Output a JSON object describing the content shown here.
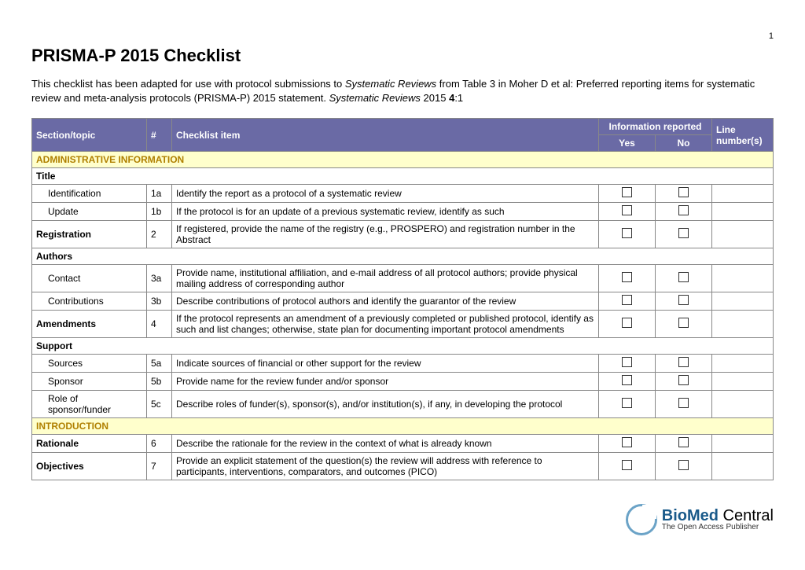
{
  "page_num": "1",
  "title": "PRISMA-P 2015 Checklist",
  "intro_pre": "This checklist has been adapted for use with protocol submissions to ",
  "intro_em1": "Systematic Reviews",
  "intro_mid": " from Table 3 in Moher D et al: Preferred reporting items for systematic review and meta-analysis protocols (PRISMA-P) 2015 statement. ",
  "intro_em2": "Systematic Reviews",
  "intro_post": " 2015 ",
  "intro_vol": "4",
  "intro_colon": ":1",
  "head": {
    "section": "Section/topic",
    "num": "#",
    "item": "Checklist item",
    "info": "Information reported",
    "yes": "Yes",
    "no": "No",
    "line": "Line number(s)"
  },
  "cat1": "ADMINISTRATIVE INFORMATION",
  "r_title": "Title",
  "r1": {
    "s": "Identification",
    "n": "1a",
    "i": "Identify the report as a protocol of a systematic review"
  },
  "r2": {
    "s": "Update",
    "n": "1b",
    "i": "If the protocol is for an update of a previous systematic review, identify as such"
  },
  "r3": {
    "s": "Registration",
    "n": "2",
    "i": "If registered, provide the name of the registry (e.g., PROSPERO) and registration number in the Abstract"
  },
  "r_auth": "Authors",
  "r4": {
    "s": "Contact",
    "n": "3a",
    "i": "Provide name, institutional affiliation, and e-mail address of all protocol authors; provide physical mailing address of corresponding author"
  },
  "r5": {
    "s": "Contributions",
    "n": "3b",
    "i": "Describe contributions of protocol authors and identify the guarantor of the review"
  },
  "r6": {
    "s": "Amendments",
    "n": "4",
    "i": "If the protocol represents an amendment of a previously completed or published protocol, identify as such and list changes; otherwise, state plan for documenting important protocol amendments"
  },
  "r_supp": "Support",
  "r7": {
    "s": "Sources",
    "n": "5a",
    "i": "Indicate sources of financial or other support for the review"
  },
  "r8": {
    "s": "Sponsor",
    "n": "5b",
    "i": "Provide name for the review funder and/or sponsor"
  },
  "r9": {
    "s": "Role of sponsor/funder",
    "n": "5c",
    "i": "Describe roles of funder(s), sponsor(s), and/or institution(s), if any, in developing the protocol"
  },
  "cat2": "INTRODUCTION",
  "r10": {
    "s": "Rationale",
    "n": "6",
    "i": "Describe the rationale for the review in the context of what is already known"
  },
  "r11": {
    "s": "Objectives",
    "n": "7",
    "i": "Provide an explicit statement of the question(s) the review will address with reference to participants, interventions, comparators, and outcomes (PICO)"
  },
  "footer": {
    "brand1": "BioMed",
    "brand2": " Central",
    "tag": "The Open Access Publisher"
  }
}
